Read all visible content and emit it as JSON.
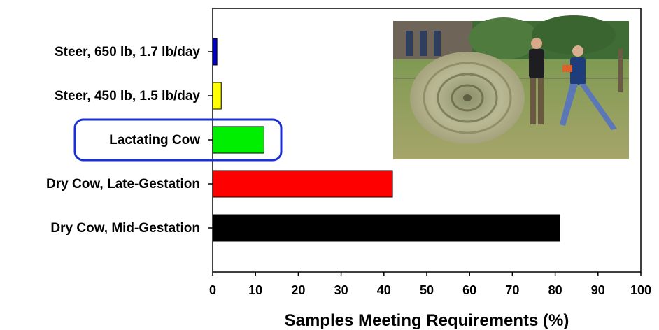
{
  "chart_data": {
    "type": "bar",
    "orientation": "horizontal",
    "categories": [
      "Steer, 650 lb, 1.7 lb/day",
      "Steer, 450 lb, 1.5 lb/day",
      "Lactating Cow",
      "Dry Cow, Late-Gestation",
      "Dry Cow, Mid-Gestation"
    ],
    "values": [
      1,
      2,
      12,
      42,
      81
    ],
    "colors": [
      "#0000c8",
      "#ffff00",
      "#00ee00",
      "#ff0000",
      "#000000"
    ],
    "xlabel": "Samples Meeting Requirements (%)",
    "ylabel": "",
    "xlim": [
      0,
      100
    ],
    "xticks": [
      0,
      10,
      20,
      30,
      40,
      50,
      60,
      70,
      80,
      90,
      100
    ],
    "grid": false,
    "highlighted_category": "Lactating Cow",
    "highlight_color": "#1a2fd6",
    "photo": "hay-bale-photo"
  }
}
